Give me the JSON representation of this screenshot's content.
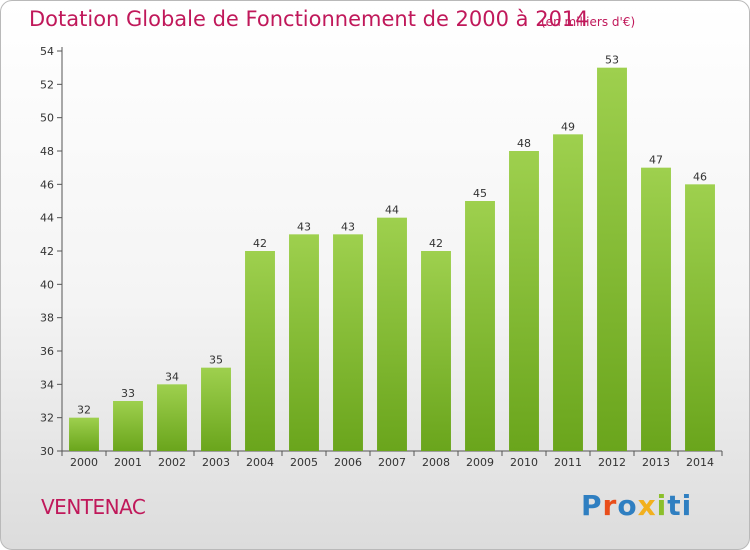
{
  "header": {
    "title": "Dotation Globale de Fonctionnement de 2000 à 2014",
    "subtitle": "(en milliers d'€)"
  },
  "footer": {
    "town": "VENTENAC",
    "logo": "Proxiti"
  },
  "colors": {
    "accent": "#c0185a",
    "bar_light": "#9ed04e",
    "bar_dark": "#6aa51c",
    "logo_letters": [
      "#2f7fc1",
      "#e94e1b",
      "#2f7fc1",
      "#f2b01e",
      "#8bbf2a",
      "#2f7fc1",
      "#2f7fc1"
    ]
  },
  "chart_data": {
    "type": "bar",
    "title": "Dotation Globale de Fonctionnement de 2000 à 2014",
    "subtitle": "(en milliers d'€)",
    "categories": [
      "2000",
      "2001",
      "2002",
      "2003",
      "2004",
      "2005",
      "2006",
      "2007",
      "2008",
      "2009",
      "2010",
      "2011",
      "2012",
      "2013",
      "2014"
    ],
    "values": [
      32,
      33,
      34,
      35,
      42,
      43,
      43,
      44,
      42,
      45,
      48,
      49,
      53,
      47,
      46
    ],
    "ylim": [
      30,
      54
    ],
    "yticks": [
      30,
      32,
      34,
      36,
      38,
      40,
      42,
      44,
      46,
      48,
      50,
      52,
      54
    ],
    "grid": false,
    "data_labels": true
  }
}
